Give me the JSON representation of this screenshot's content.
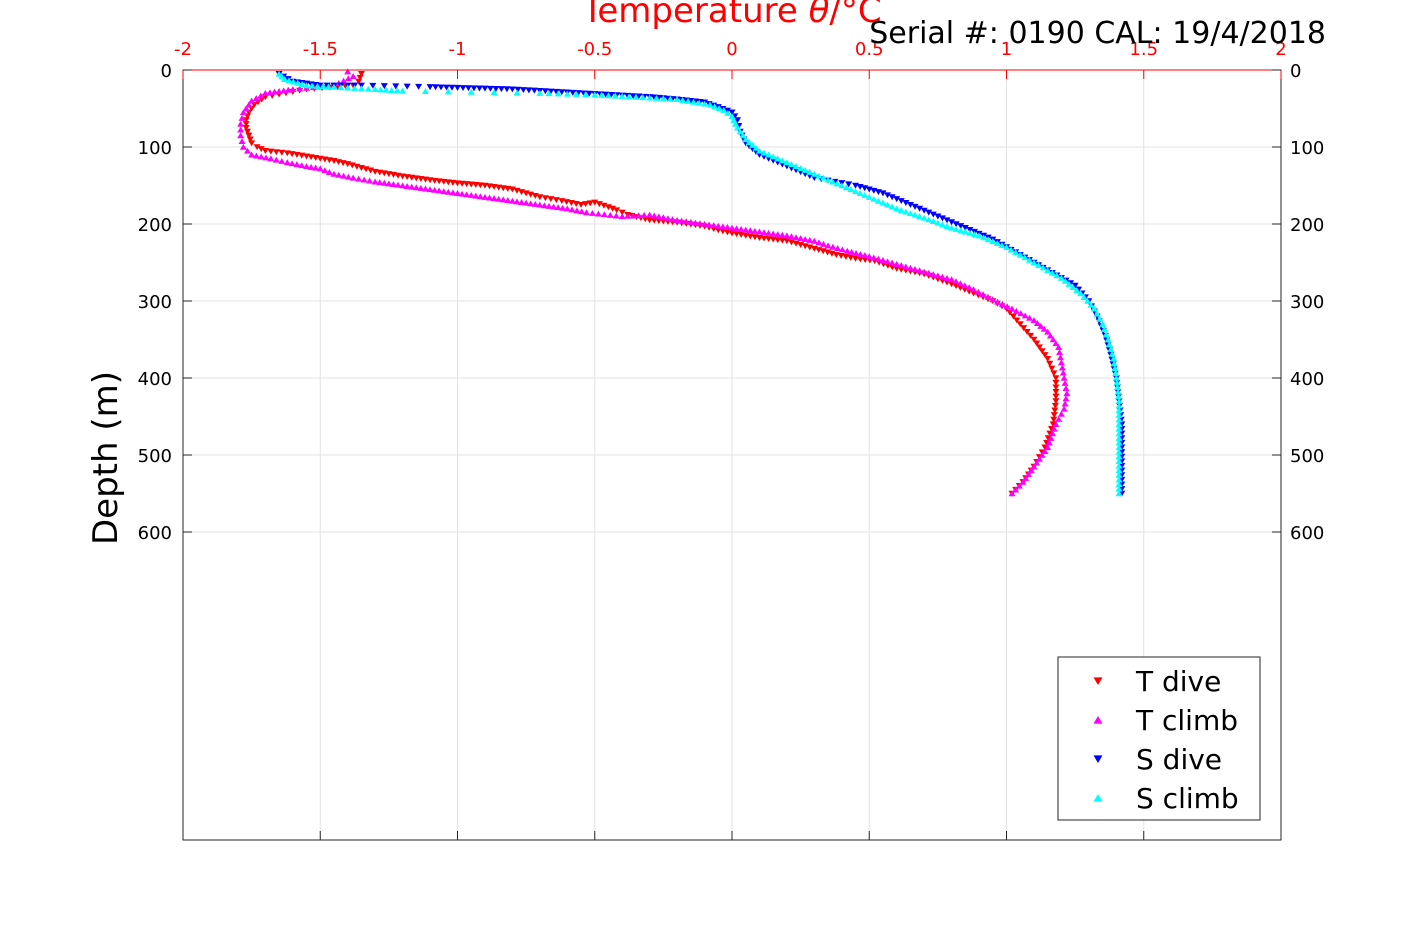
{
  "header": {
    "serial_text": "Serial #: 0190  CAL: 19/4/2018"
  },
  "chart_data": {
    "type": "scatter",
    "title": "",
    "top_axis_label_main": "Temperature ",
    "top_axis_label_symbol": "θ",
    "top_axis_label_unit": "/°C",
    "xlabel": "",
    "ylabel": "Depth (m)",
    "xlim": [
      -2,
      2
    ],
    "ylim": [
      0,
      1000
    ],
    "y_reversed": true,
    "x_ticks": [
      -2,
      -1.5,
      -1,
      -0.5,
      0,
      0.5,
      1,
      1.5,
      2
    ],
    "x_tick_labels": [
      "-2",
      "-1.5",
      "-1",
      "-0.5",
      "0",
      "0.5",
      "1",
      "1.5",
      "2"
    ],
    "y_ticks": [
      0,
      100,
      200,
      300,
      400,
      500,
      600
    ],
    "y_tick_labels": [
      "0",
      "100",
      "200",
      "300",
      "400",
      "500",
      "600"
    ],
    "grid": true,
    "top_axis_color": "#ff0000",
    "legend_position": "bottom-right",
    "series": [
      {
        "name": "T dive",
        "color": "#ff0000",
        "marker": "triangle-down",
        "points": [
          [
            -1.35,
            5
          ],
          [
            -1.36,
            15
          ],
          [
            -1.38,
            20
          ],
          [
            -1.55,
            25
          ],
          [
            -1.7,
            35
          ],
          [
            -1.74,
            45
          ],
          [
            -1.76,
            55
          ],
          [
            -1.77,
            65
          ],
          [
            -1.77,
            75
          ],
          [
            -1.76,
            85
          ],
          [
            -1.75,
            95
          ],
          [
            -1.73,
            100
          ],
          [
            -1.7,
            105
          ],
          [
            -1.62,
            108
          ],
          [
            -1.55,
            112
          ],
          [
            -1.5,
            115
          ],
          [
            -1.45,
            118
          ],
          [
            -1.4,
            122
          ],
          [
            -1.35,
            127
          ],
          [
            -1.3,
            132
          ],
          [
            -1.2,
            138
          ],
          [
            -1.1,
            143
          ],
          [
            -1.0,
            147
          ],
          [
            -0.9,
            150
          ],
          [
            -0.8,
            155
          ],
          [
            -0.75,
            160
          ],
          [
            -0.7,
            165
          ],
          [
            -0.62,
            170
          ],
          [
            -0.55,
            175
          ],
          [
            -0.5,
            172
          ],
          [
            -0.45,
            178
          ],
          [
            -0.42,
            182
          ],
          [
            -0.38,
            188
          ],
          [
            -0.3,
            195
          ],
          [
            -0.2,
            198
          ],
          [
            -0.1,
            203
          ],
          [
            -0.05,
            208
          ],
          [
            0.0,
            212
          ],
          [
            0.1,
            218
          ],
          [
            0.2,
            222
          ],
          [
            0.3,
            232
          ],
          [
            0.38,
            240
          ],
          [
            0.45,
            245
          ],
          [
            0.52,
            248
          ],
          [
            0.6,
            258
          ],
          [
            0.7,
            265
          ],
          [
            0.8,
            278
          ],
          [
            0.88,
            290
          ],
          [
            0.95,
            300
          ],
          [
            1.0,
            310
          ],
          [
            1.05,
            330
          ],
          [
            1.1,
            350
          ],
          [
            1.15,
            375
          ],
          [
            1.18,
            400
          ],
          [
            1.18,
            430
          ],
          [
            1.17,
            460
          ],
          [
            1.14,
            490
          ],
          [
            1.1,
            515
          ],
          [
            1.06,
            535
          ],
          [
            1.02,
            550
          ]
        ]
      },
      {
        "name": "T climb",
        "color": "#ff00ff",
        "marker": "triangle-up",
        "points": [
          [
            -1.4,
            2
          ],
          [
            -1.38,
            8
          ],
          [
            -1.45,
            20
          ],
          [
            -1.6,
            25
          ],
          [
            -1.7,
            30
          ],
          [
            -1.75,
            40
          ],
          [
            -1.78,
            55
          ],
          [
            -1.79,
            70
          ],
          [
            -1.79,
            85
          ],
          [
            -1.78,
            100
          ],
          [
            -1.75,
            110
          ],
          [
            -1.68,
            115
          ],
          [
            -1.62,
            120
          ],
          [
            -1.55,
            125
          ],
          [
            -1.5,
            128
          ],
          [
            -1.45,
            135
          ],
          [
            -1.38,
            140
          ],
          [
            -1.3,
            145
          ],
          [
            -1.2,
            150
          ],
          [
            -1.1,
            155
          ],
          [
            -1.0,
            160
          ],
          [
            -0.9,
            165
          ],
          [
            -0.8,
            170
          ],
          [
            -0.7,
            175
          ],
          [
            -0.6,
            180
          ],
          [
            -0.53,
            185
          ],
          [
            -0.4,
            190
          ],
          [
            -0.3,
            188
          ],
          [
            -0.2,
            195
          ],
          [
            -0.1,
            200
          ],
          [
            0.0,
            205
          ],
          [
            0.1,
            210
          ],
          [
            0.2,
            215
          ],
          [
            0.3,
            222
          ],
          [
            0.35,
            228
          ],
          [
            0.42,
            235
          ],
          [
            0.5,
            242
          ],
          [
            0.6,
            252
          ],
          [
            0.7,
            262
          ],
          [
            0.8,
            272
          ],
          [
            0.88,
            285
          ],
          [
            0.95,
            298
          ],
          [
            1.02,
            310
          ],
          [
            1.1,
            325
          ],
          [
            1.15,
            340
          ],
          [
            1.19,
            360
          ],
          [
            1.2,
            380
          ],
          [
            1.21,
            400
          ],
          [
            1.22,
            420
          ],
          [
            1.21,
            440
          ],
          [
            1.18,
            460
          ],
          [
            1.15,
            490
          ],
          [
            1.1,
            515
          ],
          [
            1.06,
            535
          ],
          [
            1.02,
            550
          ]
        ]
      },
      {
        "name": "S dive",
        "color": "#0000ff",
        "marker": "triangle-down",
        "points": [
          [
            -1.65,
            5
          ],
          [
            -1.6,
            15
          ],
          [
            -1.5,
            20
          ],
          [
            -1.35,
            20
          ],
          [
            -1.1,
            22
          ],
          [
            -1.0,
            23
          ],
          [
            -0.9,
            24
          ],
          [
            -0.8,
            25
          ],
          [
            -0.7,
            27
          ],
          [
            -0.6,
            29
          ],
          [
            -0.5,
            31
          ],
          [
            -0.4,
            33
          ],
          [
            -0.3,
            35
          ],
          [
            -0.2,
            38
          ],
          [
            -0.1,
            42
          ],
          [
            -0.05,
            48
          ],
          [
            0.0,
            55
          ],
          [
            0.02,
            65
          ],
          [
            0.03,
            80
          ],
          [
            0.05,
            95
          ],
          [
            0.1,
            110
          ],
          [
            0.2,
            125
          ],
          [
            0.3,
            140
          ],
          [
            0.45,
            150
          ],
          [
            0.55,
            160
          ],
          [
            0.65,
            175
          ],
          [
            0.75,
            190
          ],
          [
            0.85,
            205
          ],
          [
            0.95,
            220
          ],
          [
            1.05,
            240
          ],
          [
            1.15,
            260
          ],
          [
            1.25,
            280
          ],
          [
            1.3,
            300
          ],
          [
            1.33,
            320
          ],
          [
            1.36,
            345
          ],
          [
            1.38,
            370
          ],
          [
            1.4,
            400
          ],
          [
            1.41,
            430
          ],
          [
            1.42,
            460
          ],
          [
            1.42,
            490
          ],
          [
            1.42,
            520
          ],
          [
            1.42,
            550
          ]
        ]
      },
      {
        "name": "S climb",
        "color": "#00ffff",
        "marker": "triangle-up",
        "points": [
          [
            -1.65,
            5
          ],
          [
            -1.63,
            12
          ],
          [
            -1.55,
            20
          ],
          [
            -1.45,
            22
          ],
          [
            -1.3,
            25
          ],
          [
            -1.2,
            27
          ],
          [
            -0.7,
            30
          ],
          [
            -0.5,
            32
          ],
          [
            -0.35,
            35
          ],
          [
            -0.2,
            38
          ],
          [
            -0.08,
            45
          ],
          [
            -0.03,
            52
          ],
          [
            0.0,
            60
          ],
          [
            0.02,
            75
          ],
          [
            0.05,
            90
          ],
          [
            0.1,
            105
          ],
          [
            0.2,
            120
          ],
          [
            0.3,
            135
          ],
          [
            0.4,
            150
          ],
          [
            0.5,
            165
          ],
          [
            0.6,
            180
          ],
          [
            0.7,
            192
          ],
          [
            0.8,
            205
          ],
          [
            0.9,
            215
          ],
          [
            1.0,
            230
          ],
          [
            1.1,
            250
          ],
          [
            1.2,
            270
          ],
          [
            1.27,
            290
          ],
          [
            1.32,
            310
          ],
          [
            1.35,
            330
          ],
          [
            1.37,
            350
          ],
          [
            1.39,
            375
          ],
          [
            1.4,
            400
          ],
          [
            1.41,
            430
          ],
          [
            1.41,
            460
          ],
          [
            1.41,
            490
          ],
          [
            1.41,
            520
          ],
          [
            1.41,
            550
          ]
        ]
      }
    ]
  }
}
